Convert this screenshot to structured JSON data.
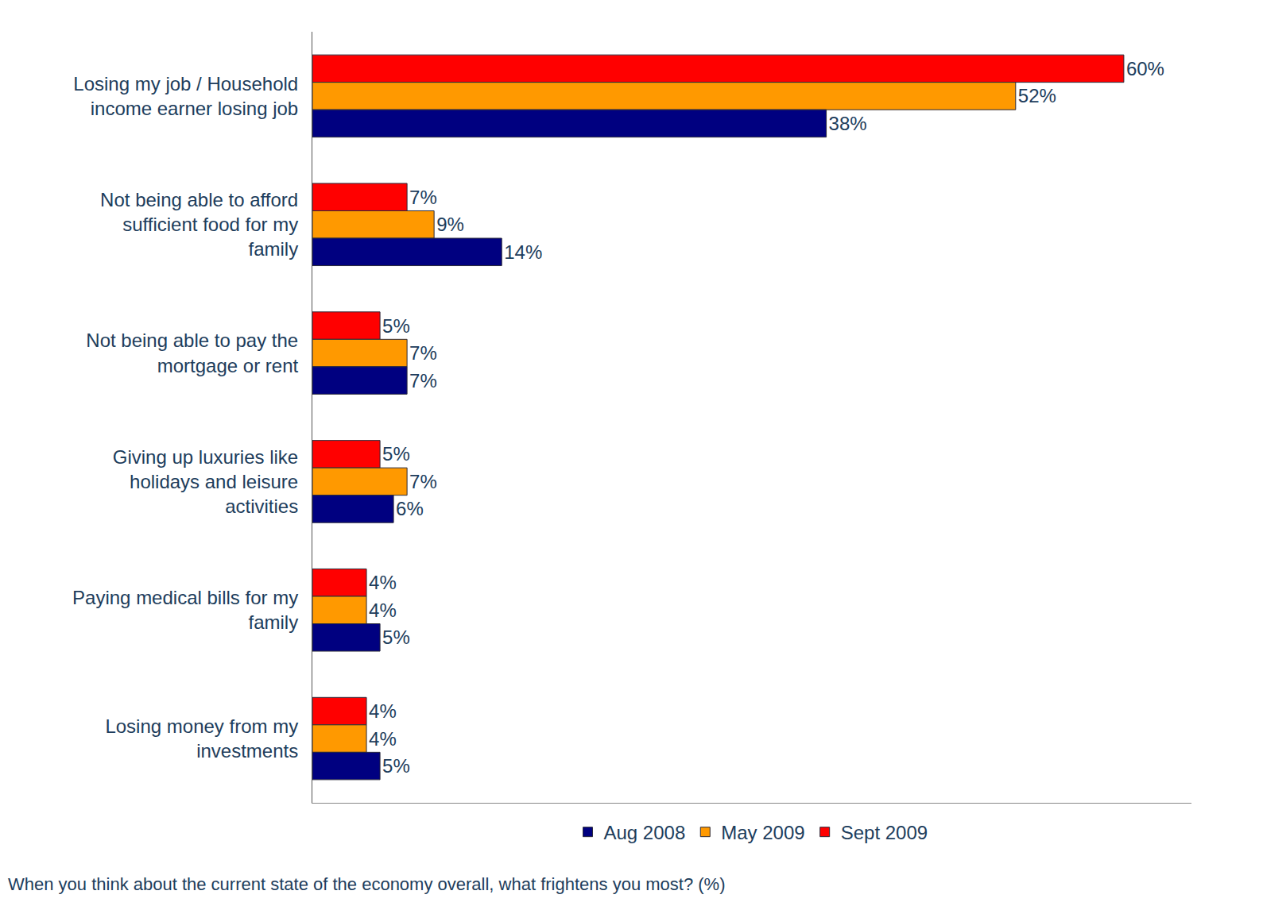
{
  "chart_data": {
    "type": "bar",
    "orientation": "horizontal",
    "title": "When you think about the current state of the economy overall, what frightens you most? (%)",
    "categories": [
      "Losing my job / Household income earner losing job",
      "Not being able to afford sufficient food for my family",
      "Not being able to pay the mortgage or rent",
      "Giving up luxuries like holidays and leisure activities",
      "Paying medical bills for my family",
      "Losing money from my investments"
    ],
    "series": [
      {
        "name": "Aug 2008",
        "color": "#000080",
        "values": [
          38,
          14,
          7,
          6,
          5,
          5
        ],
        "value_labels": [
          "38%",
          "14%",
          "7%",
          "6%",
          "5%",
          "5%"
        ]
      },
      {
        "name": "May 2009",
        "color": "#FF9900",
        "values": [
          52,
          9,
          7,
          7,
          4,
          4
        ],
        "value_labels": [
          "52%",
          "9%",
          "7%",
          "7%",
          "4%",
          "4%"
        ]
      },
      {
        "name": "Sept 2009",
        "color": "#FF0000",
        "values": [
          60,
          7,
          5,
          5,
          4,
          4
        ],
        "value_labels": [
          "60%",
          "7%",
          "5%",
          "5%",
          "4%",
          "4%"
        ]
      }
    ],
    "xlim": [
      0,
      65
    ],
    "xticks": [],
    "tick_labels": "y",
    "data_labels": true,
    "legend": "bottom",
    "grid": false
  }
}
